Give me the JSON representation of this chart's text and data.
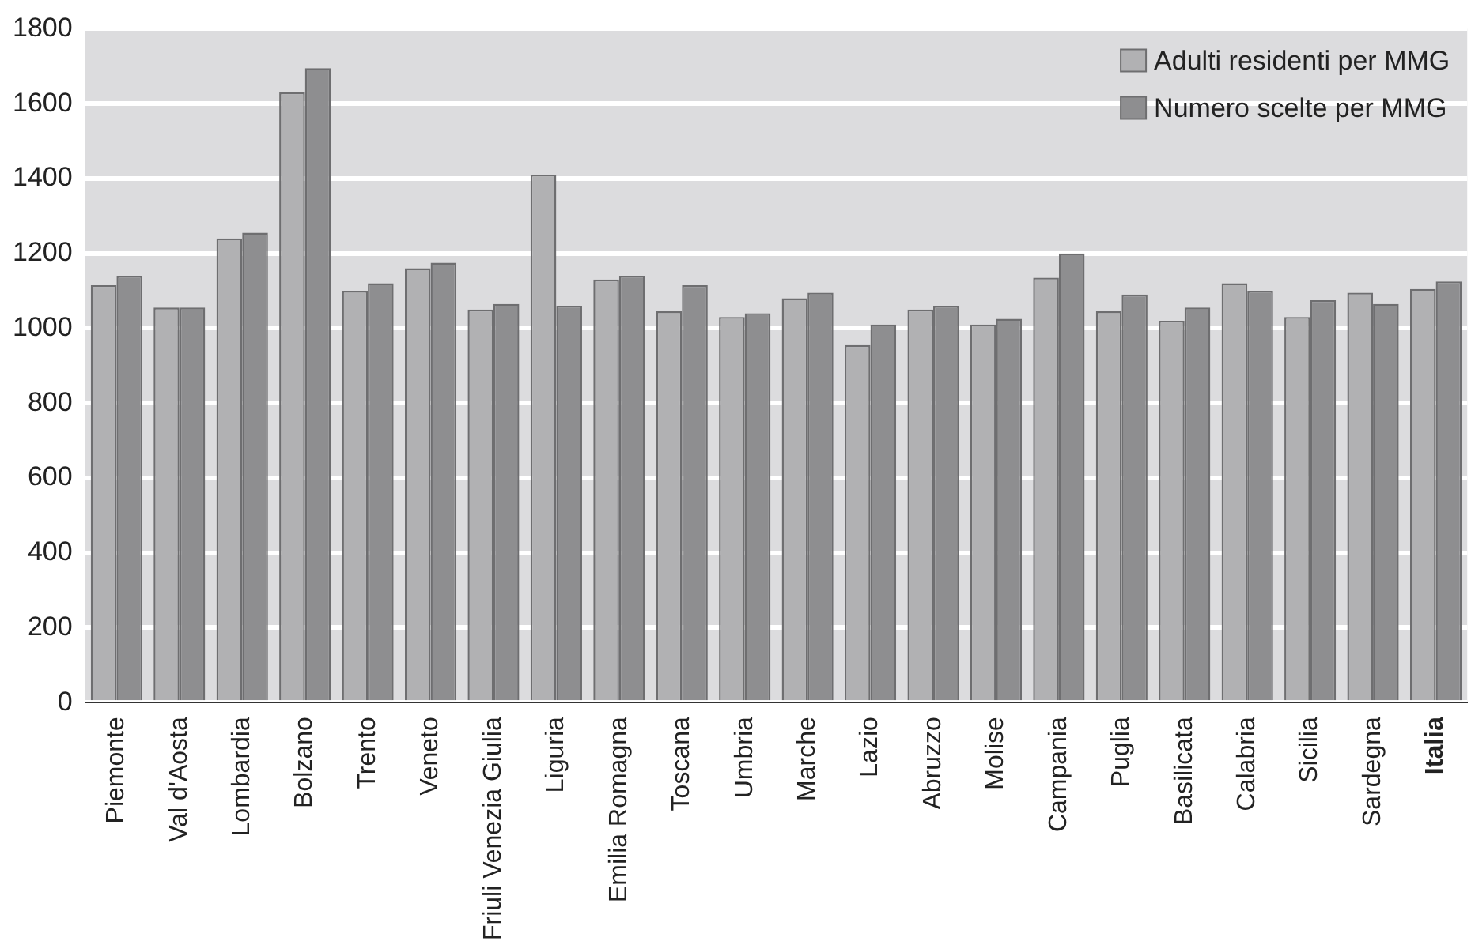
{
  "chart_data": {
    "type": "bar",
    "categories": [
      "Piemonte",
      "Val d'Aosta",
      "Lombardia",
      "Bolzano",
      "Trento",
      "Veneto",
      "Friuli Venezia Giulia",
      "Liguria",
      "Emilia Romagna",
      "Toscana",
      "Umbria",
      "Marche",
      "Lazio",
      "Abruzzo",
      "Molise",
      "Campania",
      "Puglia",
      "Basilicata",
      "Calabria",
      "Sicilia",
      "Sardegna",
      "Italia"
    ],
    "series": [
      {
        "name": "Adulti residenti per MMG",
        "color": "#b1b1b3",
        "values": [
          1115,
          1055,
          1240,
          1630,
          1100,
          1160,
          1050,
          1410,
          1130,
          1045,
          1030,
          1080,
          955,
          1050,
          1010,
          1135,
          1045,
          1020,
          1120,
          1030,
          1095,
          1105
        ]
      },
      {
        "name": "Numero scelte per MMG",
        "color": "#8e8e90",
        "values": [
          1140,
          1055,
          1255,
          1695,
          1120,
          1175,
          1065,
          1060,
          1140,
          1115,
          1040,
          1095,
          1010,
          1060,
          1025,
          1200,
          1090,
          1055,
          1100,
          1075,
          1065,
          1125
        ]
      }
    ],
    "ylim": [
      0,
      1800
    ],
    "yticks": [
      0,
      200,
      400,
      600,
      800,
      1000,
      1200,
      1400,
      1600,
      1800
    ],
    "grid": "y",
    "legend": "top right"
  }
}
